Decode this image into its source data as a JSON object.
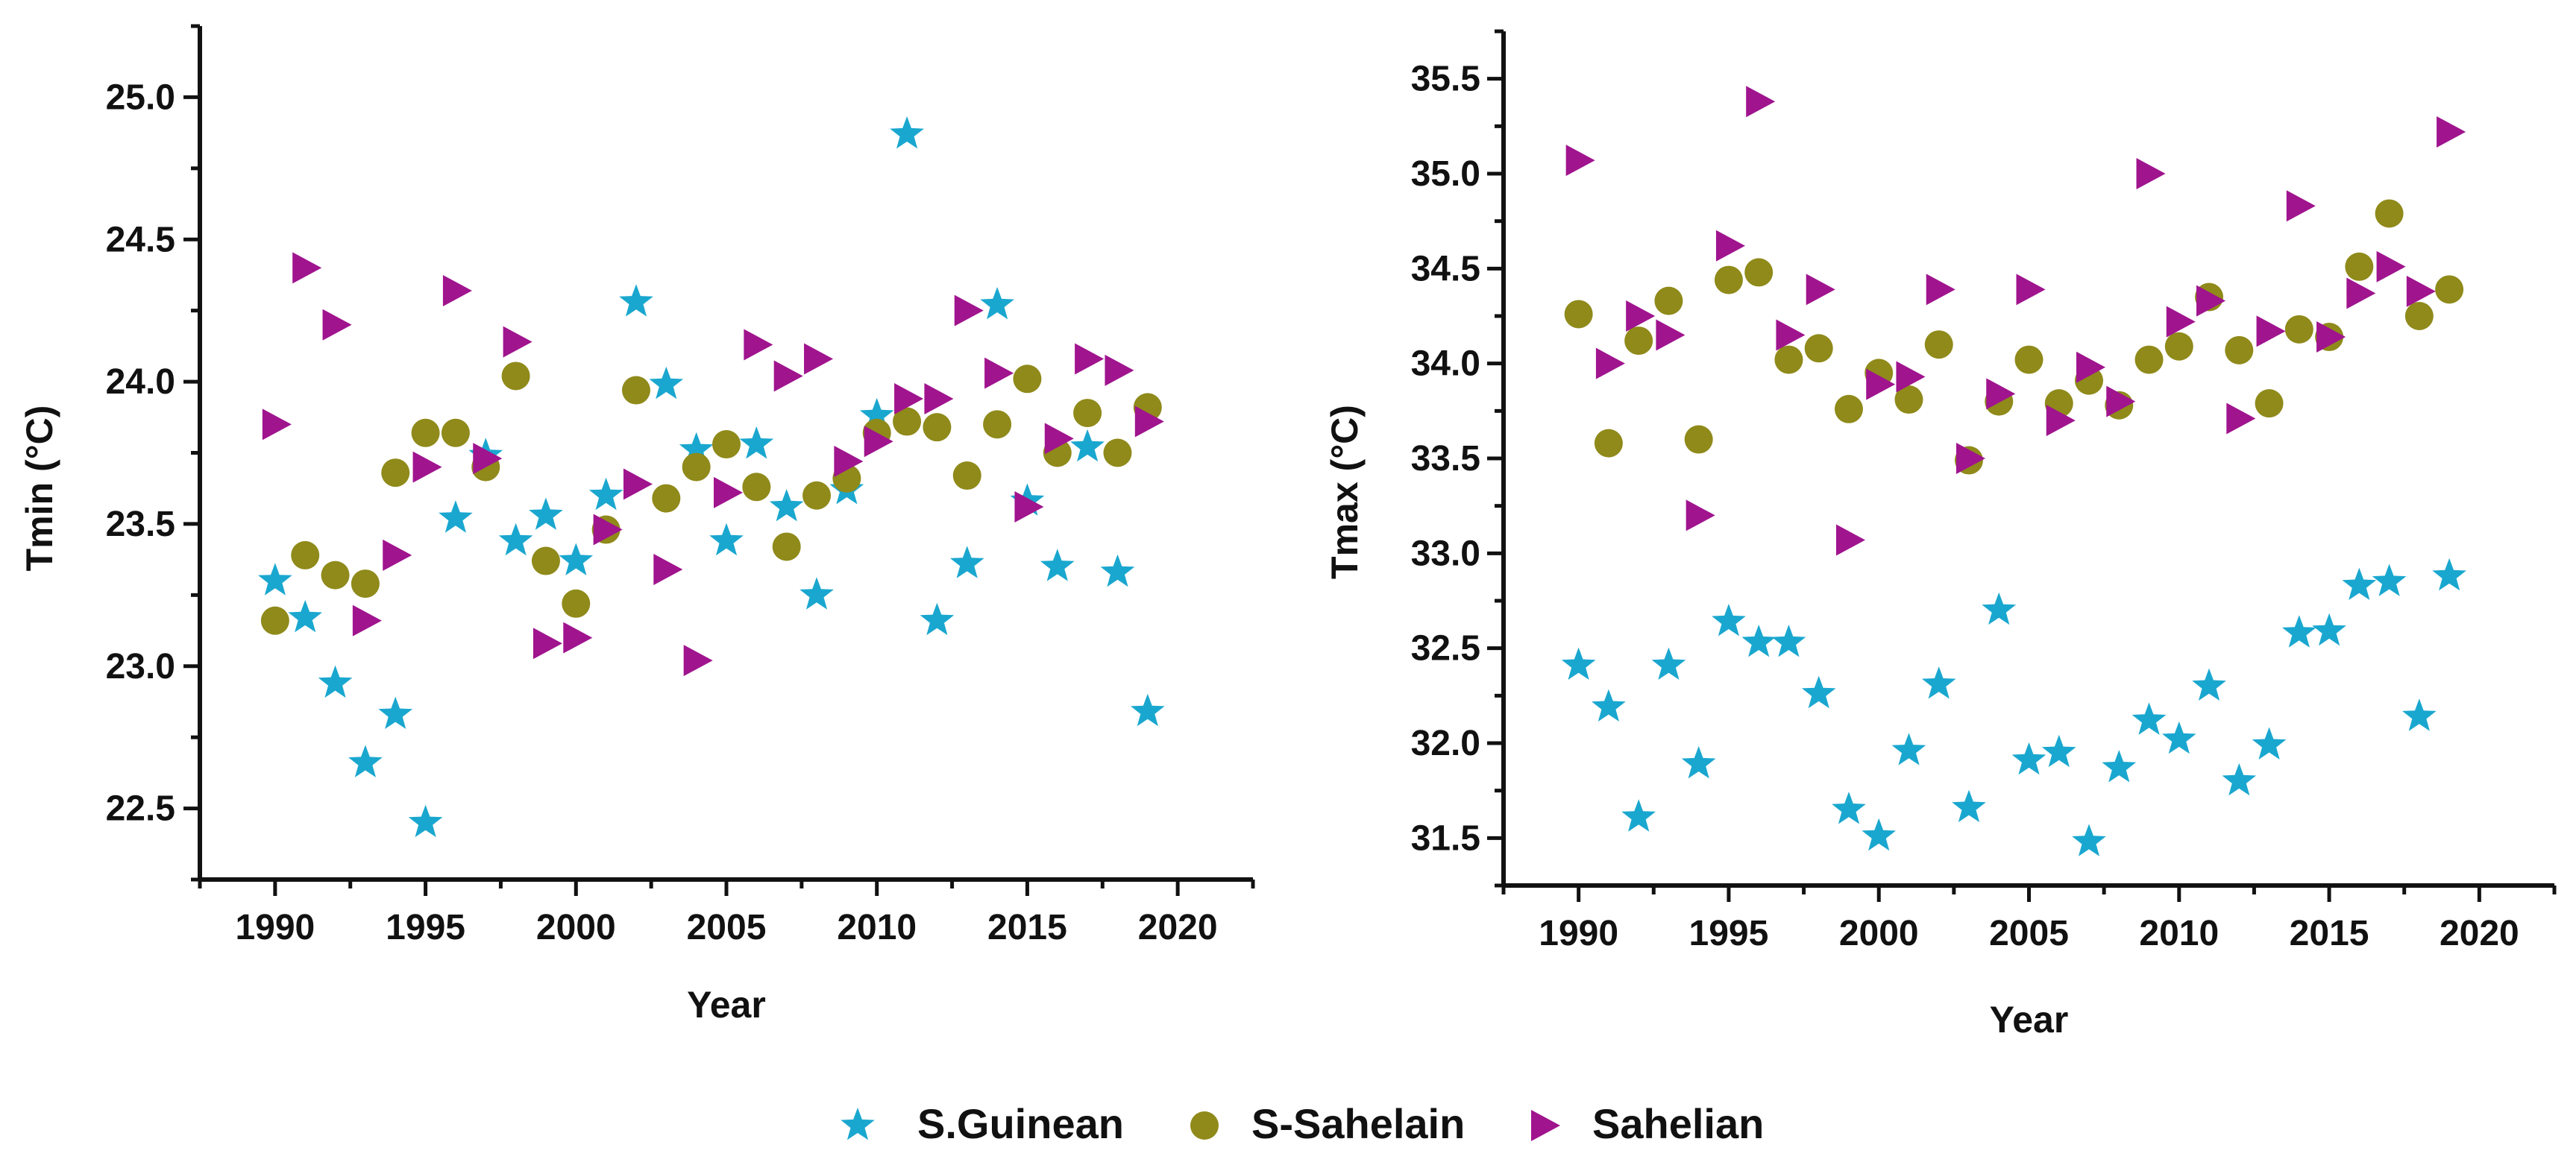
{
  "legend": {
    "entries": [
      {
        "key": "sguinean",
        "label": "S.Guinean",
        "marker": "star",
        "color": "#1aa7cf"
      },
      {
        "key": "ssahelain",
        "label": "S-Sahelain",
        "marker": "circle",
        "color": "#8f8a1a"
      },
      {
        "key": "sahelian",
        "label": "Sahelian",
        "marker": "triangle-right",
        "color": "#a0148e"
      }
    ]
  },
  "chart_data": [
    {
      "type": "scatter",
      "xlabel": "Year",
      "ylabel": "Tmin (°C)",
      "xlim": [
        1987.5,
        2022.5
      ],
      "ylim": [
        22.25,
        25.25
      ],
      "xticks": [
        1990,
        1995,
        2000,
        2005,
        2010,
        2015,
        2020
      ],
      "xticks_minor": [
        1987.5,
        1992.5,
        1997.5,
        2002.5,
        2007.5,
        2012.5,
        2017.5,
        2022.5
      ],
      "yticks": [
        "22.5",
        "23.0",
        "23.5",
        "24.0",
        "24.5",
        "25.0"
      ],
      "yticks_minor": [
        22.25,
        22.75,
        23.25,
        23.75,
        24.25,
        24.75,
        25.25
      ],
      "x": [
        1990,
        1991,
        1992,
        1993,
        1994,
        1995,
        1996,
        1997,
        1998,
        1999,
        2000,
        2001,
        2002,
        2003,
        2004,
        2005,
        2006,
        2007,
        2008,
        2009,
        2010,
        2011,
        2012,
        2013,
        2014,
        2015,
        2016,
        2017,
        2018,
        2019
      ],
      "series": [
        {
          "key": "sguinean",
          "name": "S.Guinean",
          "values": [
            23.3,
            23.17,
            22.94,
            22.66,
            22.83,
            22.45,
            23.52,
            23.74,
            23.44,
            23.53,
            23.37,
            23.6,
            24.28,
            23.99,
            23.76,
            23.44,
            23.78,
            23.56,
            23.25,
            23.62,
            23.88,
            24.87,
            23.16,
            23.36,
            24.27,
            23.58,
            23.35,
            23.77,
            23.33,
            22.84
          ]
        },
        {
          "key": "ssahelain",
          "name": "S-Sahelain",
          "values": [
            23.16,
            23.39,
            23.32,
            23.29,
            23.68,
            23.82,
            23.82,
            23.7,
            24.02,
            23.37,
            23.22,
            23.48,
            23.97,
            23.59,
            23.7,
            23.78,
            23.63,
            23.42,
            23.6,
            23.66,
            23.82,
            23.86,
            23.84,
            23.67,
            23.85,
            24.01,
            23.75,
            23.89,
            23.75,
            23.91
          ]
        },
        {
          "key": "sahelian",
          "name": "Sahelian",
          "values": [
            23.85,
            24.4,
            24.2,
            23.16,
            23.39,
            23.7,
            24.32,
            23.73,
            24.14,
            23.08,
            23.1,
            23.48,
            23.64,
            23.34,
            23.02,
            23.61,
            24.13,
            24.02,
            24.08,
            23.72,
            23.79,
            23.94,
            23.94,
            24.25,
            24.03,
            23.56,
            23.8,
            24.08,
            24.04,
            23.86
          ]
        }
      ]
    },
    {
      "type": "scatter",
      "xlabel": "Year",
      "ylabel": "Tmax (°C)",
      "xlim": [
        1987.5,
        2022.5
      ],
      "ylim": [
        31.25,
        35.75
      ],
      "xticks": [
        1990,
        1995,
        2000,
        2005,
        2010,
        2015,
        2020
      ],
      "xticks_minor": [
        1987.5,
        1992.5,
        1997.5,
        2002.5,
        2007.5,
        2012.5,
        2017.5,
        2022.5
      ],
      "yticks": [
        "31.5",
        "32.0",
        "32.5",
        "33.0",
        "33.5",
        "34.0",
        "34.5",
        "35.0",
        "35.5"
      ],
      "yticks_minor": [
        31.25,
        31.75,
        32.25,
        32.75,
        33.25,
        33.75,
        34.25,
        34.75,
        35.25,
        35.75
      ],
      "x": [
        1990,
        1991,
        1992,
        1993,
        1994,
        1995,
        1996,
        1997,
        1998,
        1999,
        2000,
        2001,
        2002,
        2003,
        2004,
        2005,
        2006,
        2007,
        2008,
        2009,
        2010,
        2011,
        2012,
        2013,
        2014,
        2015,
        2016,
        2017,
        2018,
        2019
      ],
      "series": [
        {
          "key": "sguinean",
          "name": "S.Guinean",
          "values": [
            32.41,
            32.19,
            31.61,
            32.41,
            31.89,
            32.64,
            32.53,
            32.53,
            32.26,
            31.65,
            31.51,
            31.96,
            32.31,
            31.66,
            32.7,
            31.91,
            31.95,
            31.48,
            31.87,
            32.12,
            32.02,
            32.3,
            31.8,
            31.99,
            32.58,
            32.59,
            32.83,
            32.85,
            32.14,
            32.88
          ]
        },
        {
          "key": "ssahelain",
          "name": "S-Sahelain",
          "values": [
            34.26,
            33.58,
            34.12,
            34.33,
            33.6,
            34.44,
            34.48,
            34.02,
            34.08,
            33.76,
            33.95,
            33.81,
            34.1,
            33.49,
            33.8,
            34.02,
            33.79,
            33.91,
            33.78,
            34.02,
            34.09,
            34.35,
            34.07,
            33.79,
            34.18,
            34.14,
            34.51,
            34.79,
            34.25,
            34.39
          ]
        },
        {
          "key": "sahelian",
          "name": "Sahelian",
          "values": [
            35.07,
            34.0,
            34.25,
            34.15,
            33.2,
            34.62,
            35.38,
            34.15,
            34.39,
            33.07,
            33.89,
            33.93,
            34.39,
            33.5,
            33.84,
            34.39,
            33.7,
            33.98,
            33.8,
            35.0,
            34.22,
            34.33,
            33.71,
            34.17,
            34.83,
            34.14,
            34.37,
            34.51,
            34.38,
            35.22
          ]
        }
      ]
    }
  ]
}
